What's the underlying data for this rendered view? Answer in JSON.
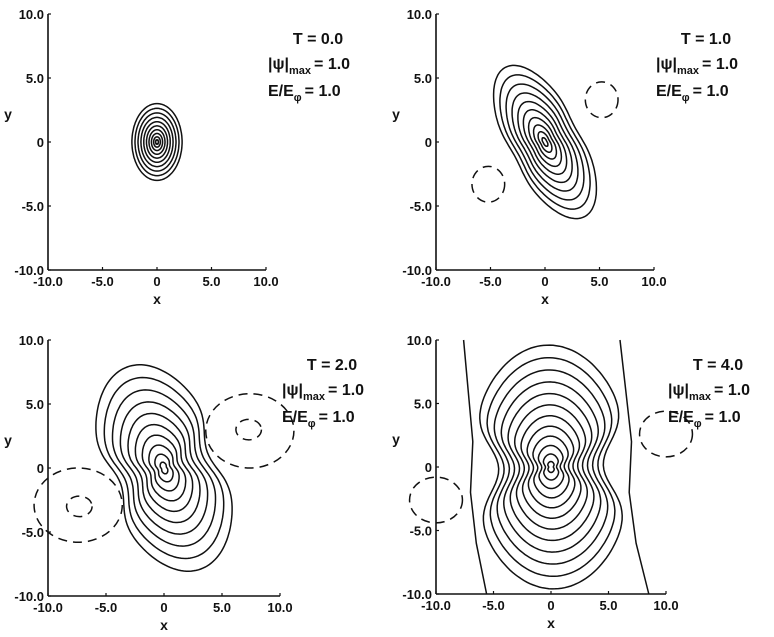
{
  "chart_data": [
    {
      "type": "contour",
      "panel": "T = 0.0",
      "xlabel": "x",
      "ylabel": "y",
      "xlim": [
        -10,
        10
      ],
      "ylim": [
        -10,
        10
      ],
      "xticks": [
        "-10.0",
        "-5.0",
        "0",
        "5.0",
        "10.0"
      ],
      "yticks": [
        "10.0",
        "5.0",
        "0",
        "-5.0",
        "-10.0"
      ],
      "annotation": {
        "T": "T = 0.0",
        "psi_label": "|ψ|",
        "psi_sub": "max",
        "psi_value": "= 1.0",
        "E_label": "E/E",
        "E_sub": "φ",
        "E_value": "= 1.0"
      },
      "contour_levels": 10,
      "peak": [
        0,
        0
      ],
      "outer_semi_axes": [
        2.3,
        3.0
      ],
      "tilt_deg": 0,
      "lobe": 0,
      "negative_contours": []
    },
    {
      "type": "contour",
      "panel": "T = 1.0",
      "xlabel": "x",
      "ylabel": "y",
      "xlim": [
        -10,
        10
      ],
      "ylim": [
        -10,
        10
      ],
      "xticks": [
        "-10.0",
        "-5.0",
        "0",
        "5.0",
        "10.0"
      ],
      "yticks": [
        "10.0",
        "5.0",
        "0",
        "-5.0",
        "-10.0"
      ],
      "annotation": {
        "T": "T = 1.0",
        "psi_label": "|ψ|",
        "psi_sub": "max",
        "psi_value": "= 1.0",
        "E_label": "E/E",
        "E_sub": "φ",
        "E_value": "= 1.0"
      },
      "contour_levels": 10,
      "peak": [
        0,
        0
      ],
      "outer_semi_axes": [
        3.4,
        6.6
      ],
      "tilt_deg": 28,
      "lobe": 0.1,
      "negative_contours": [
        {
          "center": [
            5.2,
            3.3
          ],
          "radii": [
            1.5,
            1.4
          ]
        },
        {
          "center": [
            -5.2,
            -3.3
          ],
          "radii": [
            1.5,
            1.4
          ]
        }
      ]
    },
    {
      "type": "contour",
      "panel": "T = 2.0",
      "xlabel": "x",
      "ylabel": "y",
      "xlim": [
        -10,
        10
      ],
      "ylim": [
        -10,
        10
      ],
      "xticks": [
        "-10.0",
        "-5.0",
        "0",
        "5.0",
        "10.0"
      ],
      "yticks": [
        "10.0",
        "5.0",
        "0",
        "-5.0",
        "-10.0"
      ],
      "annotation": {
        "T": "T = 2.0",
        "psi_label": "|ψ|",
        "psi_sub": "max",
        "psi_value": "= 1.0",
        "E_label": "E/E",
        "E_sub": "φ",
        "E_value": "= 1.0"
      },
      "contour_levels": 10,
      "peak": [
        0,
        0
      ],
      "outer_semi_axes": [
        5.3,
        8.4
      ],
      "tilt_deg": 20,
      "lobe": 0.25,
      "negative_contours": [
        {
          "center": [
            7.4,
            2.9
          ],
          "radii": [
            3.8,
            2.9
          ]
        },
        {
          "center": [
            7.3,
            3.0
          ],
          "radii": [
            1.1,
            0.8
          ]
        },
        {
          "center": [
            -7.4,
            -2.9
          ],
          "radii": [
            3.8,
            2.9
          ]
        },
        {
          "center": [
            -7.3,
            -3.0
          ],
          "radii": [
            1.1,
            0.8
          ]
        }
      ]
    },
    {
      "type": "contour",
      "panel": "T = 4.0",
      "xlabel": "x",
      "ylabel": "y",
      "xlim": [
        -10,
        10
      ],
      "ylim": [
        -10,
        10
      ],
      "xticks": [
        "-10.0",
        "-5.0",
        "0",
        "5.0",
        "10.0"
      ],
      "yticks": [
        "10.0",
        "5.0",
        "0",
        "-5.0",
        "-10.0"
      ],
      "annotation": {
        "T": "T = 4.0",
        "psi_label": "|ψ|",
        "psi_sub": "max",
        "psi_value": "= 1.0",
        "E_label": "E/E",
        "E_sub": "φ",
        "E_value": "= 1.0"
      },
      "contour_levels": 12,
      "peak": [
        0,
        0
      ],
      "outer_semi_axes": [
        7.0,
        9.6
      ],
      "tilt_deg": 2,
      "lobe": 0.35,
      "outer_open_curves": [
        {
          "points": [
            [
              6.0,
              10.0
            ],
            [
              6.5,
              6.0
            ],
            [
              7.0,
              2.0
            ],
            [
              6.8,
              -2.0
            ],
            [
              7.4,
              -6.0
            ],
            [
              8.5,
              -10.0
            ]
          ]
        },
        {
          "points": [
            [
              -7.6,
              10.0
            ],
            [
              -7.2,
              6.0
            ],
            [
              -6.8,
              2.0
            ],
            [
              -7.0,
              -2.0
            ],
            [
              -6.5,
              -6.0
            ],
            [
              -5.6,
              -10.0
            ]
          ]
        }
      ],
      "negative_contours": [
        {
          "center": [
            10.0,
            2.6
          ],
          "radii": [
            2.3,
            1.8
          ]
        },
        {
          "center": [
            -10.0,
            -2.6
          ],
          "radii": [
            2.3,
            1.8
          ]
        }
      ]
    }
  ]
}
